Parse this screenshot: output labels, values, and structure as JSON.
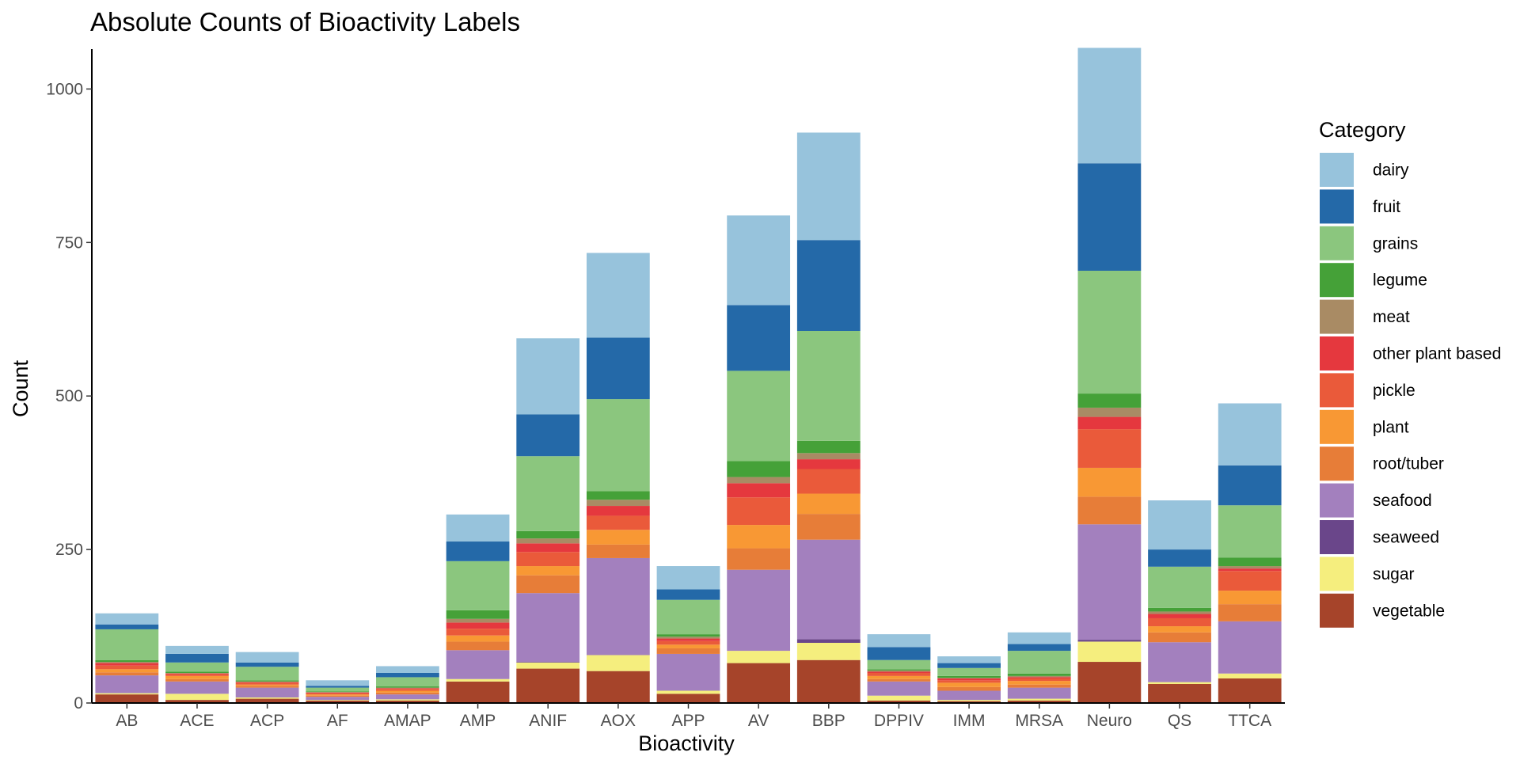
{
  "chart_data": {
    "type": "bar",
    "stacked": true,
    "title": "Absolute Counts of Bioactivity Labels",
    "xlabel": "Bioactivity",
    "ylabel": "Count",
    "ylim": [
      0,
      1065
    ],
    "yticks": [
      0,
      250,
      500,
      750,
      1000
    ],
    "grid": false,
    "legend": {
      "title": "Category",
      "placement": "right"
    },
    "categories": [
      "AB",
      "ACE",
      "ACP",
      "AF",
      "AMAP",
      "AMP",
      "ANIF",
      "AOX",
      "APP",
      "AV",
      "BBP",
      "DPPIV",
      "IMM",
      "MRSA",
      "Neuro",
      "QS",
      "TTCA"
    ],
    "series": [
      {
        "name": "vegetable",
        "color": "#A6442A",
        "values": [
          14,
          5,
          7,
          4,
          4,
          35,
          56,
          52,
          15,
          65,
          70,
          4,
          3,
          4,
          67,
          31,
          40
        ]
      },
      {
        "name": "sugar",
        "color": "#F5EE7E",
        "values": [
          2,
          10,
          2,
          1,
          2,
          4,
          10,
          26,
          5,
          20,
          28,
          8,
          2,
          3,
          33,
          3,
          8
        ]
      },
      {
        "name": "seaweed",
        "color": "#6A468A",
        "values": [
          0,
          0,
          0,
          0,
          0,
          0,
          1,
          0,
          0,
          0,
          6,
          0,
          0,
          0,
          3,
          0,
          0
        ]
      },
      {
        "name": "seafood",
        "color": "#A380BE",
        "values": [
          29,
          20,
          16,
          5,
          8,
          47,
          112,
          158,
          60,
          132,
          162,
          23,
          15,
          18,
          188,
          65,
          85
        ]
      },
      {
        "name": "root/tuber",
        "color": "#E77D38",
        "values": [
          5,
          4,
          3,
          2,
          3,
          14,
          29,
          22,
          9,
          35,
          42,
          4,
          6,
          5,
          45,
          16,
          28
        ]
      },
      {
        "name": "plant",
        "color": "#F89834",
        "values": [
          5,
          5,
          2,
          2,
          3,
          10,
          15,
          24,
          6,
          38,
          33,
          5,
          7,
          6,
          47,
          10,
          22
        ]
      },
      {
        "name": "pickle",
        "color": "#EA5A3A",
        "values": [
          6,
          3,
          3,
          2,
          3,
          11,
          23,
          23,
          6,
          45,
          40,
          5,
          4,
          4,
          63,
          13,
          32
        ]
      },
      {
        "name": "other plant based",
        "color": "#E5383E",
        "values": [
          4,
          1,
          1,
          1,
          1,
          10,
          14,
          16,
          4,
          23,
          16,
          2,
          3,
          2,
          20,
          7,
          4
        ]
      },
      {
        "name": "meat",
        "color": "#A98B64",
        "values": [
          2,
          1,
          1,
          1,
          1,
          6,
          8,
          10,
          3,
          10,
          10,
          2,
          1,
          2,
          15,
          4,
          4
        ]
      },
      {
        "name": "legume",
        "color": "#45A138",
        "values": [
          3,
          2,
          2,
          1,
          2,
          14,
          12,
          14,
          4,
          26,
          20,
          2,
          3,
          4,
          23,
          6,
          14
        ]
      },
      {
        "name": "grains",
        "color": "#8BC67E",
        "values": [
          50,
          15,
          22,
          6,
          15,
          80,
          122,
          150,
          56,
          147,
          179,
          15,
          13,
          37,
          200,
          67,
          85
        ]
      },
      {
        "name": "fruit",
        "color": "#2469A8",
        "values": [
          8,
          14,
          7,
          3,
          7,
          32,
          68,
          100,
          17,
          107,
          148,
          21,
          8,
          11,
          175,
          28,
          65
        ]
      },
      {
        "name": "dairy",
        "color": "#97C3DC",
        "values": [
          18,
          13,
          17,
          9,
          11,
          44,
          124,
          138,
          38,
          146,
          175,
          21,
          11,
          19,
          188,
          80,
          101
        ]
      }
    ]
  }
}
